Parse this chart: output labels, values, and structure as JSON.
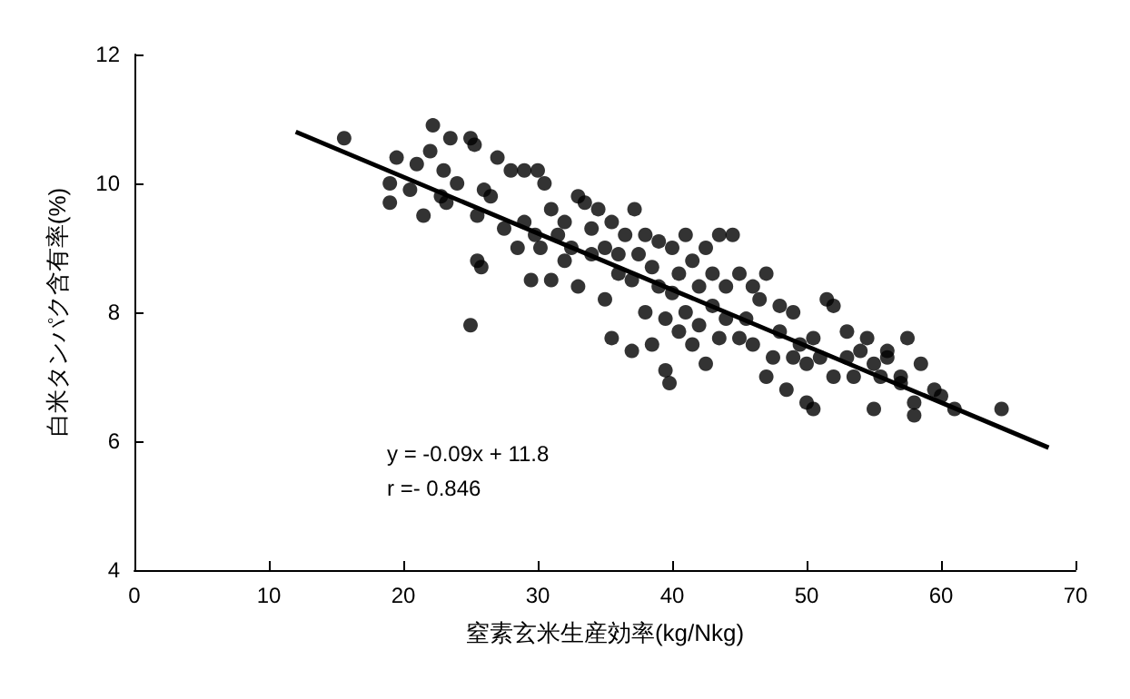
{
  "chart_data": {
    "type": "scatter",
    "xlabel": "窒素玄米生産効率(kg/Nkg)",
    "ylabel": "白米タンパク含有率(%)",
    "xlim": [
      0,
      70
    ],
    "xticks": [
      0,
      10,
      20,
      30,
      40,
      50,
      60,
      70
    ],
    "ylim": [
      4,
      12
    ],
    "yticks": [
      4,
      6,
      8,
      10,
      12
    ],
    "marker": "circle",
    "annotations": [
      "y = -0.09x + 11.8",
      "r =- 0.846"
    ],
    "series": [
      {
        "color": "#000000",
        "x": [
          15.6,
          19,
          19,
          19.5,
          20.5,
          21,
          21.5,
          22,
          22.2,
          22.8,
          23,
          23.5,
          23.2,
          24,
          25,
          25.3,
          25.5,
          25,
          25.5,
          25.8,
          26,
          26.5,
          27,
          27.5,
          28,
          28.5,
          29,
          29,
          29.5,
          29.8,
          30,
          30.2,
          30.5,
          31,
          31,
          31.5,
          32,
          32,
          32.5,
          33,
          33,
          33.5,
          34,
          34,
          34.5,
          35,
          35,
          35.5,
          35.5,
          36,
          36,
          36.5,
          37,
          37,
          37.2,
          37.5,
          38,
          38,
          38.5,
          38.5,
          39,
          39,
          39.5,
          39.5,
          39.8,
          40,
          40,
          40.5,
          40.5,
          41,
          41,
          41.5,
          41.5,
          42,
          42,
          42.5,
          42.5,
          43,
          43,
          43.5,
          43.5,
          44,
          44,
          44.5,
          45,
          45,
          45.5,
          46,
          46,
          46.5,
          47,
          47,
          47.5,
          48,
          48,
          48.5,
          49,
          49,
          49.5,
          50,
          50,
          50.5,
          50.5,
          51,
          51.5,
          52,
          52,
          53,
          53,
          53.5,
          54,
          54.5,
          55,
          55,
          55.5,
          56,
          56,
          57,
          57,
          57.5,
          58,
          58,
          58.5,
          59.5,
          60,
          61,
          64.5
        ],
        "values": [
          10.7,
          10.0,
          9.7,
          10.4,
          9.9,
          10.3,
          9.5,
          10.5,
          10.9,
          9.8,
          10.2,
          10.7,
          9.7,
          10.0,
          10.7,
          10.6,
          9.5,
          7.8,
          8.8,
          8.7,
          9.9,
          9.8,
          10.4,
          9.3,
          10.2,
          9.0,
          10.2,
          9.4,
          8.5,
          9.2,
          10.2,
          9.0,
          10.0,
          8.5,
          9.6,
          9.2,
          8.8,
          9.4,
          9.0,
          9.8,
          8.4,
          9.7,
          9.3,
          8.9,
          9.6,
          9.0,
          8.2,
          9.4,
          7.6,
          8.9,
          8.6,
          9.2,
          8.5,
          7.4,
          9.6,
          8.9,
          9.2,
          8.0,
          8.7,
          7.5,
          9.1,
          8.4,
          7.1,
          7.9,
          6.9,
          9.0,
          8.3,
          7.7,
          8.6,
          8.0,
          9.2,
          8.8,
          7.5,
          8.4,
          7.8,
          9.0,
          7.2,
          8.1,
          8.6,
          9.2,
          7.6,
          8.4,
          7.9,
          9.2,
          8.6,
          7.6,
          7.9,
          8.4,
          7.5,
          8.2,
          7.0,
          8.6,
          7.3,
          8.1,
          7.7,
          6.8,
          7.3,
          8.0,
          7.5,
          6.6,
          7.2,
          6.5,
          7.6,
          7.3,
          8.2,
          7.0,
          8.1,
          7.7,
          7.3,
          7.0,
          7.4,
          7.6,
          7.2,
          6.5,
          7.0,
          7.3,
          7.4,
          7.0,
          6.9,
          7.6,
          6.4,
          6.6,
          7.2,
          6.8,
          6.7,
          6.5,
          6.5
        ]
      },
      {
        "type": "line",
        "color": "#000000",
        "marker": "none",
        "x": [
          12,
          68
        ],
        "values": [
          10.8,
          5.9
        ]
      }
    ]
  }
}
